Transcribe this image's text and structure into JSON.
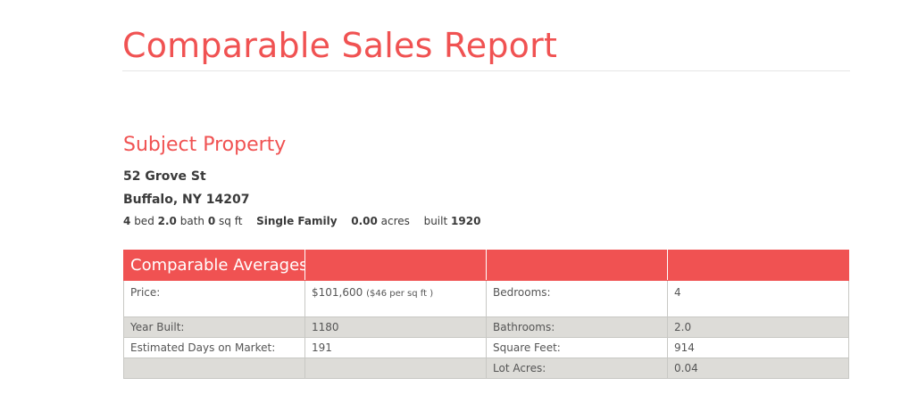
{
  "report": {
    "title": "Comparable Sales Report"
  },
  "subject": {
    "section_title": "Subject Property",
    "address_line1": "52 Grove St",
    "address_line2": "Buffalo, NY  14207",
    "beds": "4",
    "beds_label": "bed",
    "baths": "2.0",
    "baths_label": "bath",
    "sqft": "0",
    "sqft_label": "sq ft",
    "type": "Single Family",
    "acres": "0.00",
    "acres_label": "acres",
    "built_label": "built",
    "built": "1920"
  },
  "averages": {
    "header": "Comparable Averages",
    "price_label": "Price:",
    "price_value": "$101,600",
    "price_per_sqft": "($46 per sq ft )",
    "bedrooms_label": "Bedrooms:",
    "bedrooms_value": "4",
    "year_built_label": "Year Built:",
    "year_built_value": "1180",
    "bathrooms_label": "Bathrooms:",
    "bathrooms_value": "2.0",
    "days_label": "Estimated Days on Market:",
    "days_value": "191",
    "sqft_label": "Square Feet:",
    "sqft_value": "914",
    "lot_label": "Lot Acres:",
    "lot_value": "0.04"
  }
}
